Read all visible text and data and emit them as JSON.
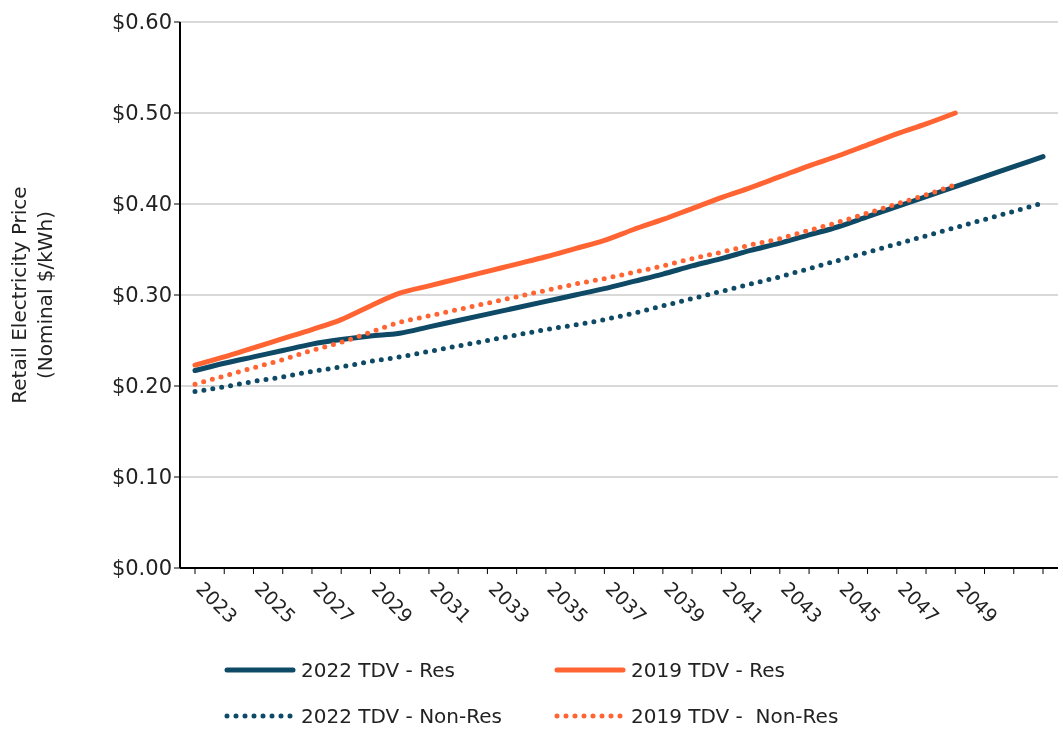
{
  "chart_data": {
    "type": "line",
    "ylabel": "Retail Electricity Price\n(Nominal $/kWh)",
    "categories": [
      "2023",
      null,
      "2025",
      null,
      "2027",
      null,
      "2029",
      null,
      "2031",
      null,
      "2033",
      null,
      "2035",
      null,
      "2037",
      null,
      "2039",
      null,
      "2041",
      null,
      "2043",
      null,
      "2045",
      null,
      "2047",
      null,
      "2049",
      null,
      null,
      null
    ],
    "series": [
      {
        "name": "2022 TDV - Res",
        "color": "#0e4a66",
        "line_style": "solid",
        "values": [
          0.217,
          0.225,
          0.232,
          0.239,
          0.246,
          0.251,
          0.255,
          0.258,
          0.265,
          0.272,
          0.279,
          0.286,
          0.293,
          0.3,
          0.307,
          0.315,
          0.323,
          0.332,
          0.34,
          0.349,
          0.357,
          0.366,
          0.375,
          0.386,
          0.397,
          0.408,
          0.419,
          0.43,
          0.441,
          0.452
        ]
      },
      {
        "name": "2019 TDV - Res",
        "color": "#ff6432",
        "line_style": "solid",
        "values": [
          0.223,
          0.232,
          0.242,
          0.252,
          0.262,
          0.273,
          0.288,
          0.302,
          0.31,
          0.318,
          0.326,
          0.334,
          0.342,
          0.351,
          0.36,
          0.372,
          0.383,
          0.395,
          0.407,
          0.418,
          0.43,
          0.442,
          0.453,
          0.465,
          0.477,
          0.488,
          0.5,
          null,
          null,
          null
        ]
      },
      {
        "name": "2022 TDV - Non-Res",
        "color": "#0e4a66",
        "line_style": "dotted",
        "values": [
          0.194,
          0.199,
          0.205,
          0.21,
          0.216,
          0.221,
          0.227,
          0.232,
          0.238,
          0.244,
          0.25,
          0.256,
          0.262,
          0.267,
          0.273,
          0.28,
          0.288,
          0.296,
          0.304,
          0.312,
          0.32,
          0.329,
          0.338,
          0.347,
          0.356,
          0.365,
          0.374,
          0.383,
          0.392,
          0.401
        ]
      },
      {
        "name": "2019 TDV -  Non-Res",
        "color": "#ff6432",
        "line_style": "dotted",
        "values": [
          0.202,
          0.211,
          0.22,
          0.229,
          0.239,
          0.248,
          0.259,
          0.27,
          0.277,
          0.284,
          0.291,
          0.298,
          0.305,
          0.312,
          0.318,
          0.325,
          0.332,
          0.34,
          0.347,
          0.355,
          0.362,
          0.371,
          0.38,
          0.39,
          0.4,
          0.41,
          0.421,
          null,
          null,
          null
        ]
      }
    ],
    "ylim": [
      0,
      0.6
    ],
    "yticks": [
      {
        "value": 0,
        "label": "$0.00"
      },
      {
        "value": 0.1,
        "label": "$0.10"
      },
      {
        "value": 0.2,
        "label": "$0.20"
      },
      {
        "value": 0.3,
        "label": "$0.30"
      },
      {
        "value": 0.4,
        "label": "$0.40"
      },
      {
        "value": 0.5,
        "label": "$0.50"
      },
      {
        "value": 0.6,
        "label": "$0.60"
      }
    ],
    "grid": "y",
    "legend": "bottom",
    "marker": "none"
  }
}
